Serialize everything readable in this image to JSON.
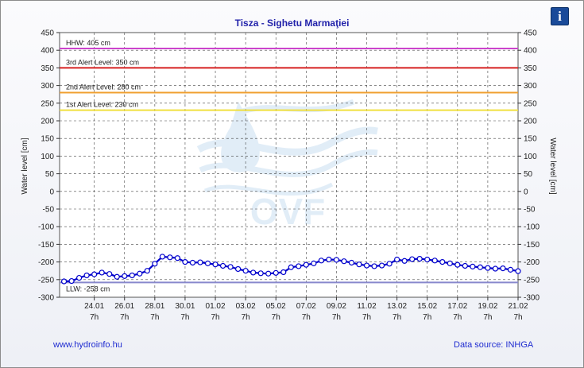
{
  "header": {
    "title": "Tisza - Sighetu Marmaţiei",
    "info_icon": "info-icon"
  },
  "footer": {
    "website": "www.hydroinfo.hu",
    "source": "Data source: INHGA"
  },
  "watermark": {
    "text": "OVF",
    "icon": "water-drop-waves-logo"
  },
  "colors": {
    "series": "#0000cc",
    "marker_fill": "#ffffff",
    "hhw": "#cc44cc",
    "alert3": "#d62020",
    "alert2": "#f0a030",
    "alert1": "#f0e040",
    "llw": "#8888cc"
  },
  "chart_data": {
    "type": "line",
    "title": "Tisza - Sighetu Marmaţiei",
    "ylabel": "Water level [cm]",
    "ylabel_right": "Water level [cm]",
    "ylim": [
      -300,
      450
    ],
    "yticks": [
      -300,
      -250,
      -200,
      -150,
      -100,
      -50,
      0,
      50,
      100,
      150,
      200,
      250,
      300,
      350,
      400,
      450
    ],
    "xlim": [
      "2025-01-22T00:00",
      "2025-02-21T07:00"
    ],
    "xticks": [
      {
        "x": "2025-01-24T07:00",
        "label": "24.01",
        "sublabel": "7h"
      },
      {
        "x": "2025-01-26T07:00",
        "label": "26.01",
        "sublabel": "7h"
      },
      {
        "x": "2025-01-28T07:00",
        "label": "28.01",
        "sublabel": "7h"
      },
      {
        "x": "2025-01-30T07:00",
        "label": "30.01",
        "sublabel": "7h"
      },
      {
        "x": "2025-02-01T07:00",
        "label": "01.02",
        "sublabel": "7h"
      },
      {
        "x": "2025-02-03T07:00",
        "label": "03.02",
        "sublabel": "7h"
      },
      {
        "x": "2025-02-05T07:00",
        "label": "05.02",
        "sublabel": "7h"
      },
      {
        "x": "2025-02-07T07:00",
        "label": "07.02",
        "sublabel": "7h"
      },
      {
        "x": "2025-02-09T07:00",
        "label": "09.02",
        "sublabel": "7h"
      },
      {
        "x": "2025-02-11T07:00",
        "label": "11.02",
        "sublabel": "7h"
      },
      {
        "x": "2025-02-13T07:00",
        "label": "13.02",
        "sublabel": "7h"
      },
      {
        "x": "2025-02-15T07:00",
        "label": "15.02",
        "sublabel": "7h"
      },
      {
        "x": "2025-02-17T07:00",
        "label": "17.02",
        "sublabel": "7h"
      },
      {
        "x": "2025-02-19T07:00",
        "label": "19.02",
        "sublabel": "7h"
      },
      {
        "x": "2025-02-21T07:00",
        "label": "21.02",
        "sublabel": "7h"
      }
    ],
    "grid": true,
    "reference_lines": [
      {
        "label": "HHW: 405 cm",
        "value": 405,
        "color": "#cc44cc"
      },
      {
        "label": "3rd Alert Level: 350 cm",
        "value": 350,
        "color": "#d62020"
      },
      {
        "label": "2nd Alert Level: 280 cm",
        "value": 280,
        "color": "#f0a030"
      },
      {
        "label": "1st Alert Level: 230 cm",
        "value": 230,
        "color": "#f0e040"
      },
      {
        "label": "LLW: -258 cm",
        "value": -258,
        "color": "#8888cc"
      }
    ],
    "series": [
      {
        "points": [
          {
            "x": "2025-01-22T07:00",
            "y": -255
          },
          {
            "x": "2025-01-22T19:00",
            "y": -254
          },
          {
            "x": "2025-01-23T07:00",
            "y": -245
          },
          {
            "x": "2025-01-23T19:00",
            "y": -238
          },
          {
            "x": "2025-01-24T07:00",
            "y": -235
          },
          {
            "x": "2025-01-24T19:00",
            "y": -230
          },
          {
            "x": "2025-01-25T07:00",
            "y": -234
          },
          {
            "x": "2025-01-25T19:00",
            "y": -242
          },
          {
            "x": "2025-01-26T07:00",
            "y": -240
          },
          {
            "x": "2025-01-26T19:00",
            "y": -238
          },
          {
            "x": "2025-01-27T07:00",
            "y": -233
          },
          {
            "x": "2025-01-27T19:00",
            "y": -225
          },
          {
            "x": "2025-01-28T07:00",
            "y": -205
          },
          {
            "x": "2025-01-28T19:00",
            "y": -185
          },
          {
            "x": "2025-01-29T07:00",
            "y": -187
          },
          {
            "x": "2025-01-29T19:00",
            "y": -189
          },
          {
            "x": "2025-01-30T07:00",
            "y": -200
          },
          {
            "x": "2025-01-30T19:00",
            "y": -202
          },
          {
            "x": "2025-01-31T07:00",
            "y": -201
          },
          {
            "x": "2025-01-31T19:00",
            "y": -204
          },
          {
            "x": "2025-02-01T07:00",
            "y": -207
          },
          {
            "x": "2025-02-01T19:00",
            "y": -211
          },
          {
            "x": "2025-02-02T07:00",
            "y": -214
          },
          {
            "x": "2025-02-02T19:00",
            "y": -220
          },
          {
            "x": "2025-02-03T07:00",
            "y": -225
          },
          {
            "x": "2025-02-03T19:00",
            "y": -230
          },
          {
            "x": "2025-02-04T07:00",
            "y": -232
          },
          {
            "x": "2025-02-04T19:00",
            "y": -233
          },
          {
            "x": "2025-02-05T07:00",
            "y": -231
          },
          {
            "x": "2025-02-05T19:00",
            "y": -229
          },
          {
            "x": "2025-02-06T07:00",
            "y": -215
          },
          {
            "x": "2025-02-06T19:00",
            "y": -212
          },
          {
            "x": "2025-02-07T07:00",
            "y": -208
          },
          {
            "x": "2025-02-07T19:00",
            "y": -204
          },
          {
            "x": "2025-02-08T07:00",
            "y": -196
          },
          {
            "x": "2025-02-08T19:00",
            "y": -193
          },
          {
            "x": "2025-02-09T07:00",
            "y": -194
          },
          {
            "x": "2025-02-09T19:00",
            "y": -198
          },
          {
            "x": "2025-02-10T07:00",
            "y": -202
          },
          {
            "x": "2025-02-10T19:00",
            "y": -207
          },
          {
            "x": "2025-02-11T07:00",
            "y": -210
          },
          {
            "x": "2025-02-11T19:00",
            "y": -212
          },
          {
            "x": "2025-02-12T07:00",
            "y": -210
          },
          {
            "x": "2025-02-12T19:00",
            "y": -205
          },
          {
            "x": "2025-02-13T07:00",
            "y": -193
          },
          {
            "x": "2025-02-13T19:00",
            "y": -197
          },
          {
            "x": "2025-02-14T07:00",
            "y": -192
          },
          {
            "x": "2025-02-14T19:00",
            "y": -191
          },
          {
            "x": "2025-02-15T07:00",
            "y": -193
          },
          {
            "x": "2025-02-15T19:00",
            "y": -196
          },
          {
            "x": "2025-02-16T07:00",
            "y": -200
          },
          {
            "x": "2025-02-16T19:00",
            "y": -204
          },
          {
            "x": "2025-02-17T07:00",
            "y": -208
          },
          {
            "x": "2025-02-17T19:00",
            "y": -211
          },
          {
            "x": "2025-02-18T07:00",
            "y": -213
          },
          {
            "x": "2025-02-18T19:00",
            "y": -215
          },
          {
            "x": "2025-02-19T07:00",
            "y": -217
          },
          {
            "x": "2025-02-19T19:00",
            "y": -219
          },
          {
            "x": "2025-02-20T07:00",
            "y": -218
          },
          {
            "x": "2025-02-20T19:00",
            "y": -222
          },
          {
            "x": "2025-02-21T07:00",
            "y": -226
          }
        ]
      }
    ]
  }
}
